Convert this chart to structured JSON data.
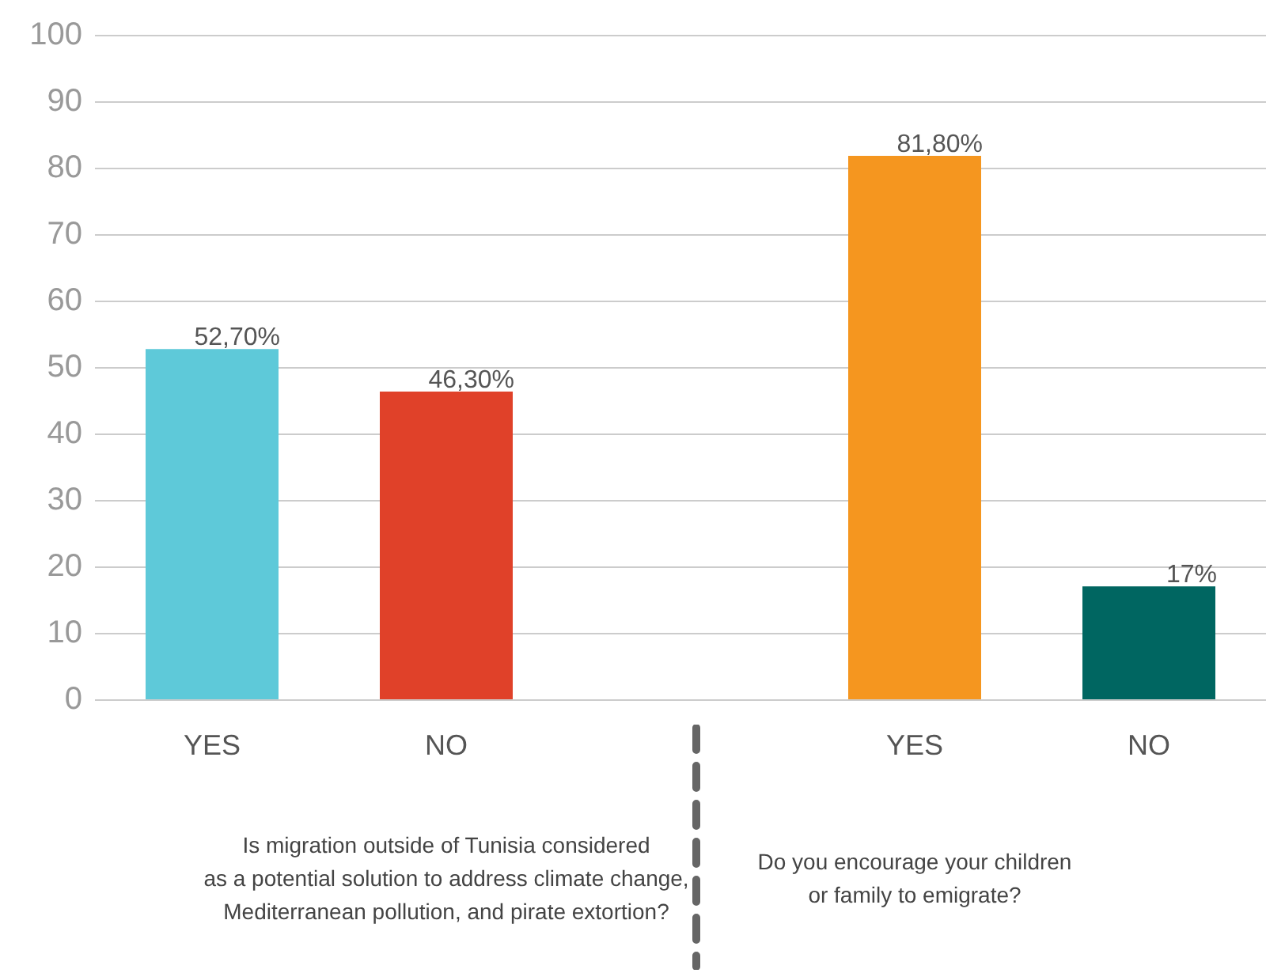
{
  "chart_data": {
    "type": "bar",
    "categories": [
      "YES",
      "NO",
      null,
      "YES",
      "NO"
    ],
    "values": [
      52.7,
      46.3,
      null,
      81.8,
      17
    ],
    "colors": [
      "#5ec9d9",
      "#e04129",
      "#ffffff",
      "#f5961f",
      "#006661"
    ],
    "value_labels": [
      "52,70%",
      "46,30%",
      null,
      "81,80%",
      "17%"
    ],
    "ylim": [
      0,
      100
    ],
    "yticks": [
      0,
      10,
      20,
      30,
      40,
      50,
      60,
      70,
      80,
      90,
      100
    ],
    "grid": "y",
    "annotations": [
      "Is migration outside of Tunisia considered\nas a potential solution to address climate change,\nMediterranean pollution, and pirate extortion?",
      "Do you encourage your children\nor family to emigrate?"
    ]
  }
}
